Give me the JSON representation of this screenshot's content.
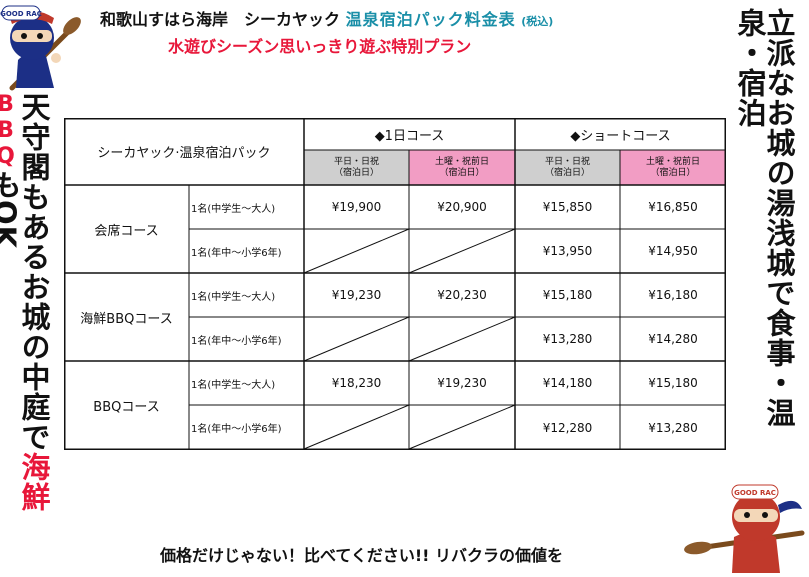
{
  "header": {
    "title_black": "和歌山すはら海岸　シーカヤック",
    "title_teal": "温泉宿泊パック料金表",
    "title_tax": "(税込)",
    "subtitle": "水遊びシーズン思いっきり遊ぶ特別プラン"
  },
  "left_vertical": {
    "part1": "天守閣もあるお城の中庭で",
    "part2_red": "海鮮",
    "part3_red": "BBQ",
    "part4": "もOK"
  },
  "right_vertical": "立派なお城の湯浅城で食事・温泉・宿泊",
  "footer": "価格だけじゃない！比べてください!! リバクラの価値を",
  "mascot": {
    "badge_text": "GOOD RAC",
    "icon": "ninja-paddler-icon"
  },
  "table": {
    "corner_label": "シーカヤック·温泉宿泊パック",
    "plans": [
      {
        "label": "◆1日コース",
        "days": [
          {
            "label": "平日・日祝",
            "note": "（宿泊日）",
            "color": "#cfcfcf"
          },
          {
            "label": "土曜・祝前日",
            "note": "（宿泊日）",
            "color": "#f29dc4"
          }
        ]
      },
      {
        "label": "◆ショートコース",
        "days": [
          {
            "label": "平日・日祝",
            "note": "（宿泊日）",
            "color": "#cfcfcf"
          },
          {
            "label": "土曜・祝前日",
            "note": "（宿泊日）",
            "color": "#f29dc4"
          }
        ]
      }
    ],
    "courses": [
      {
        "name": "会席コース",
        "rows": [
          {
            "person": "1名(中学生～大人)",
            "prices": [
              "¥19,900",
              "¥20,900",
              "¥15,850",
              "¥16,850"
            ]
          },
          {
            "person": "1名(年中～小学6年)",
            "prices": [
              "",
              "",
              "¥13,950",
              "¥14,950"
            ]
          }
        ]
      },
      {
        "name": "海鮮BBQコース",
        "rows": [
          {
            "person": "1名(中学生～大人)",
            "prices": [
              "¥19,230",
              "¥20,230",
              "¥15,180",
              "¥16,180"
            ]
          },
          {
            "person": "1名(年中～小学6年)",
            "prices": [
              "",
              "",
              "¥13,280",
              "¥14,280"
            ]
          }
        ]
      },
      {
        "name": "BBQコース",
        "rows": [
          {
            "person": "1名(中学生～大人)",
            "prices": [
              "¥18,230",
              "¥19,230",
              "¥14,180",
              "¥15,180"
            ]
          },
          {
            "person": "1名(年中～小学6年)",
            "prices": [
              "",
              "",
              "¥12,280",
              "¥13,280"
            ]
          }
        ]
      }
    ]
  }
}
